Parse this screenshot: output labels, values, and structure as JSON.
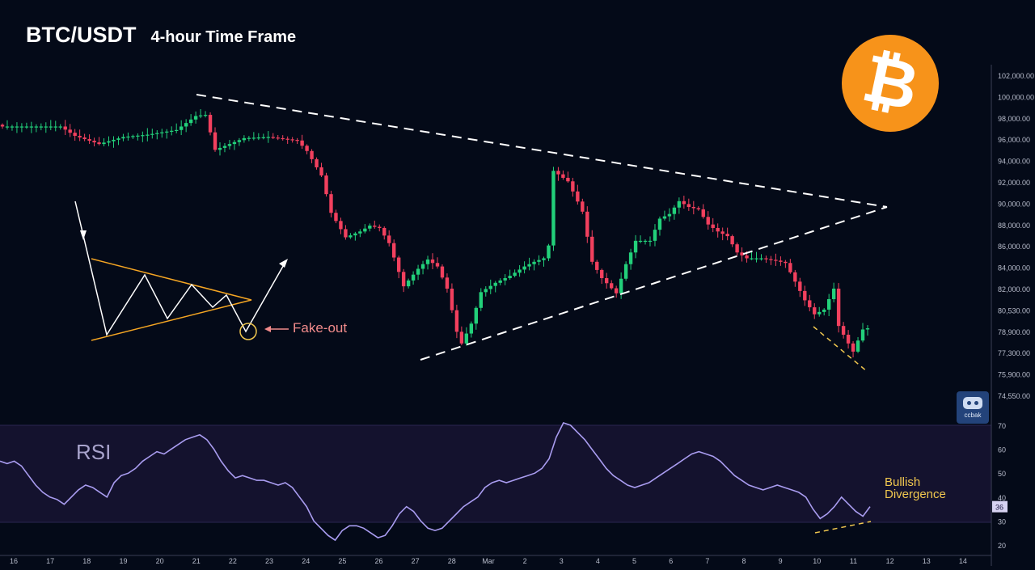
{
  "header": {
    "pair": "BTC/USDT",
    "timeframe": "4-hour Time Frame"
  },
  "badge": {
    "icon": "bitcoin-icon",
    "glyph": "₿",
    "color": "#f7931a"
  },
  "watermark": {
    "icon": "ccbak-logo-icon",
    "text": "ccbak"
  },
  "annotations": {
    "fakeout": "Fake-out",
    "bullish_1": "Bullish",
    "bullish_2": "Divergence",
    "rsi_label": "RSI"
  },
  "colors": {
    "up": "#22d07a",
    "down": "#f2405e",
    "rsi": "#a99cf0",
    "trendline": "#ffffff",
    "schematic": "#f5a623",
    "divergence": "#f1c84f",
    "background": "#040a18",
    "rsi_band": "#14122e"
  },
  "chart_data": [
    {
      "type": "candlestick",
      "title": "BTC/USDT",
      "subtitle": "4-hour Time Frame",
      "x_ticks": [
        "16",
        "17",
        "18",
        "19",
        "20",
        "21",
        "22",
        "23",
        "24",
        "25",
        "26",
        "27",
        "28",
        "Mar",
        "2",
        "3",
        "4",
        "5",
        "6",
        "7",
        "8",
        "9",
        "10",
        "11",
        "12",
        "13",
        "14"
      ],
      "y_ticks": [
        "102,000.00",
        "100,000.00",
        "98,000.00",
        "96,000.00",
        "94,000.00",
        "92,000.00",
        "90,000.00",
        "88,000.00",
        "86,000.00",
        "84,000.00",
        "82,000.00",
        "80,530.00",
        "78,900.00",
        "77,300.00",
        "75,900.00",
        "74,550.00"
      ],
      "ylim": [
        74550,
        102000
      ],
      "close_anchors": [
        [
          0,
          97600
        ],
        [
          12,
          97600
        ],
        [
          15,
          96800
        ],
        [
          20,
          96100
        ],
        [
          25,
          96700
        ],
        [
          30,
          96900
        ],
        [
          36,
          97300
        ],
        [
          40,
          98500
        ],
        [
          42,
          98600
        ],
        [
          44,
          95600
        ],
        [
          50,
          96600
        ],
        [
          55,
          96700
        ],
        [
          61,
          96400
        ],
        [
          63,
          95500
        ],
        [
          66,
          93400
        ],
        [
          68,
          90200
        ],
        [
          71,
          88100
        ],
        [
          74,
          88600
        ],
        [
          76,
          89100
        ],
        [
          78,
          88900
        ],
        [
          80,
          87600
        ],
        [
          83,
          83900
        ],
        [
          86,
          85400
        ],
        [
          88,
          86200
        ],
        [
          90,
          85600
        ],
        [
          92,
          83700
        ],
        [
          94,
          80000
        ],
        [
          95,
          79000
        ],
        [
          97,
          80700
        ],
        [
          99,
          83400
        ],
        [
          102,
          84200
        ],
        [
          105,
          84800
        ],
        [
          108,
          85600
        ],
        [
          110,
          86000
        ],
        [
          112,
          86300
        ],
        [
          113,
          87400
        ],
        [
          114,
          93800
        ],
        [
          117,
          92900
        ],
        [
          120,
          90300
        ],
        [
          122,
          86000
        ],
        [
          124,
          84600
        ],
        [
          127,
          83300
        ],
        [
          129,
          85800
        ],
        [
          131,
          87800
        ],
        [
          134,
          87800
        ],
        [
          136,
          89700
        ],
        [
          138,
          90100
        ],
        [
          140,
          91200
        ],
        [
          142,
          90700
        ],
        [
          144,
          90500
        ],
        [
          146,
          89200
        ],
        [
          148,
          88600
        ],
        [
          150,
          88200
        ],
        [
          152,
          86800
        ],
        [
          154,
          86300
        ],
        [
          157,
          86300
        ],
        [
          160,
          86100
        ],
        [
          162,
          85900
        ],
        [
          164,
          84300
        ],
        [
          166,
          82700
        ],
        [
          168,
          81500
        ],
        [
          170,
          81900
        ],
        [
          172,
          83700
        ],
        [
          173,
          80500
        ],
        [
          175,
          79000
        ],
        [
          176,
          78300
        ],
        [
          178,
          80200
        ],
        [
          179,
          80300
        ]
      ],
      "final_close": 80300
    },
    {
      "type": "line",
      "title": "RSI",
      "y_ticks": [
        "70",
        "60",
        "50",
        "40",
        "30",
        "20"
      ],
      "ylim": [
        20,
        70
      ],
      "current_value": "36",
      "values": [
        55,
        54,
        55,
        53,
        49,
        45,
        42,
        40,
        39,
        37,
        40,
        43,
        45,
        44,
        42,
        40,
        46,
        49,
        50,
        52,
        55,
        57,
        59,
        58,
        60,
        62,
        64,
        65,
        66,
        64,
        60,
        55,
        51,
        48,
        49,
        48,
        47,
        47,
        46,
        45,
        46,
        44,
        40,
        36,
        30,
        27,
        24,
        22,
        26,
        28,
        28,
        27,
        25,
        23,
        24,
        28,
        33,
        36,
        34,
        30,
        27,
        26,
        27,
        30,
        33,
        36,
        38,
        40,
        44,
        46,
        47,
        46,
        47,
        48,
        49,
        50,
        52,
        56,
        65,
        71,
        70,
        67,
        64,
        60,
        56,
        52,
        49,
        47,
        45,
        44,
        45,
        46,
        48,
        50,
        52,
        54,
        56,
        58,
        59,
        58,
        57,
        55,
        52,
        49,
        47,
        45,
        44,
        43,
        44,
        45,
        44,
        43,
        42,
        40,
        35,
        31,
        33,
        36,
        40,
        37,
        34,
        32,
        36
      ]
    }
  ]
}
